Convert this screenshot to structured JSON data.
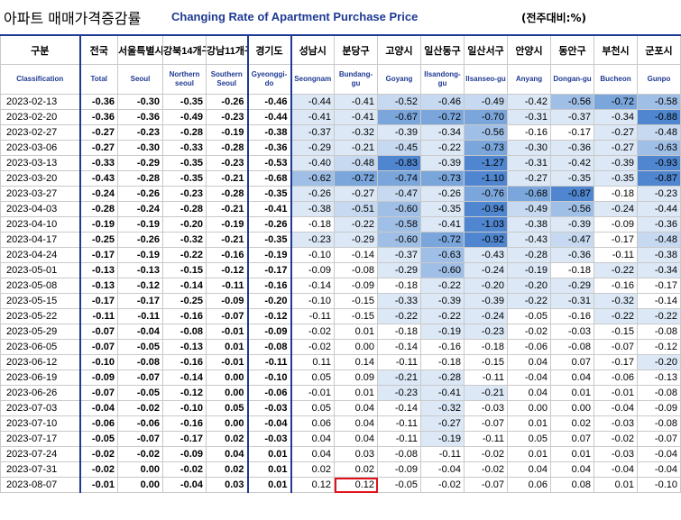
{
  "title_ko": "아파트 매매가격증감률",
  "title_en": "Changing Rate of Apartment Purchase Price",
  "unit": "(전주대비:%)",
  "headers": [
    {
      "ko": "구분",
      "en": "Classification"
    },
    {
      "ko": "전국",
      "en": "Total"
    },
    {
      "ko": "서울특별시",
      "en": "Seoul"
    },
    {
      "ko": "강북14개구",
      "en": "Northern seoul"
    },
    {
      "ko": "강남11개구",
      "en": "Southern Seoul"
    },
    {
      "ko": "경기도",
      "en": "Gyeonggi-do"
    },
    {
      "ko": "성남시",
      "en": "Seongnam"
    },
    {
      "ko": "분당구",
      "en": "Bundang-gu"
    },
    {
      "ko": "고양시",
      "en": "Goyang"
    },
    {
      "ko": "일산동구",
      "en": "Ilsandong-gu"
    },
    {
      "ko": "일산서구",
      "en": "Ilsanseo-gu"
    },
    {
      "ko": "안양시",
      "en": "Anyang"
    },
    {
      "ko": "동안구",
      "en": "Dongan-gu"
    },
    {
      "ko": "부천시",
      "en": "Bucheon"
    },
    {
      "ko": "군포시",
      "en": "Gunpo"
    }
  ],
  "rows": [
    [
      "2023-02-13",
      "-0.36",
      "-0.30",
      "-0.35",
      "-0.26",
      "-0.46",
      "-0.44",
      "-0.41",
      "-0.52",
      "-0.46",
      "-0.49",
      "-0.42",
      "-0.56",
      "-0.72",
      "-0.58"
    ],
    [
      "2023-02-20",
      "-0.36",
      "-0.36",
      "-0.49",
      "-0.23",
      "-0.44",
      "-0.41",
      "-0.41",
      "-0.67",
      "-0.72",
      "-0.70",
      "-0.31",
      "-0.37",
      "-0.34",
      "-0.88"
    ],
    [
      "2023-02-27",
      "-0.27",
      "-0.23",
      "-0.28",
      "-0.19",
      "-0.38",
      "-0.37",
      "-0.32",
      "-0.39",
      "-0.34",
      "-0.56",
      "-0.16",
      "-0.17",
      "-0.27",
      "-0.48"
    ],
    [
      "2023-03-06",
      "-0.27",
      "-0.30",
      "-0.33",
      "-0.28",
      "-0.36",
      "-0.29",
      "-0.21",
      "-0.45",
      "-0.22",
      "-0.73",
      "-0.30",
      "-0.36",
      "-0.27",
      "-0.63"
    ],
    [
      "2023-03-13",
      "-0.33",
      "-0.29",
      "-0.35",
      "-0.23",
      "-0.53",
      "-0.40",
      "-0.48",
      "-0.83",
      "-0.39",
      "-1.27",
      "-0.31",
      "-0.42",
      "-0.39",
      "-0.93"
    ],
    [
      "2023-03-20",
      "-0.43",
      "-0.28",
      "-0.35",
      "-0.21",
      "-0.68",
      "-0.62",
      "-0.72",
      "-0.74",
      "-0.73",
      "-1.10",
      "-0.27",
      "-0.35",
      "-0.35",
      "-0.87"
    ],
    [
      "2023-03-27",
      "-0.24",
      "-0.26",
      "-0.23",
      "-0.28",
      "-0.35",
      "-0.26",
      "-0.27",
      "-0.47",
      "-0.26",
      "-0.76",
      "-0.68",
      "-0.87",
      "-0.18",
      "-0.23"
    ],
    [
      "2023-04-03",
      "-0.28",
      "-0.24",
      "-0.28",
      "-0.21",
      "-0.41",
      "-0.38",
      "-0.51",
      "-0.60",
      "-0.35",
      "-0.94",
      "-0.49",
      "-0.56",
      "-0.24",
      "-0.44"
    ],
    [
      "2023-04-10",
      "-0.19",
      "-0.19",
      "-0.20",
      "-0.19",
      "-0.26",
      "-0.18",
      "-0.22",
      "-0.58",
      "-0.41",
      "-1.03",
      "-0.38",
      "-0.39",
      "-0.09",
      "-0.36"
    ],
    [
      "2023-04-17",
      "-0.25",
      "-0.26",
      "-0.32",
      "-0.21",
      "-0.35",
      "-0.23",
      "-0.29",
      "-0.60",
      "-0.72",
      "-0.92",
      "-0.43",
      "-0.47",
      "-0.17",
      "-0.48"
    ],
    [
      "2023-04-24",
      "-0.17",
      "-0.19",
      "-0.22",
      "-0.16",
      "-0.19",
      "-0.10",
      "-0.14",
      "-0.37",
      "-0.63",
      "-0.43",
      "-0.28",
      "-0.36",
      "-0.11",
      "-0.38"
    ],
    [
      "2023-05-01",
      "-0.13",
      "-0.13",
      "-0.15",
      "-0.12",
      "-0.17",
      "-0.09",
      "-0.08",
      "-0.29",
      "-0.60",
      "-0.24",
      "-0.19",
      "-0.18",
      "-0.22",
      "-0.34"
    ],
    [
      "2023-05-08",
      "-0.13",
      "-0.12",
      "-0.14",
      "-0.11",
      "-0.16",
      "-0.14",
      "-0.09",
      "-0.18",
      "-0.22",
      "-0.20",
      "-0.20",
      "-0.29",
      "-0.16",
      "-0.17"
    ],
    [
      "2023-05-15",
      "-0.17",
      "-0.17",
      "-0.25",
      "-0.09",
      "-0.20",
      "-0.10",
      "-0.15",
      "-0.33",
      "-0.39",
      "-0.39",
      "-0.22",
      "-0.31",
      "-0.32",
      "-0.14"
    ],
    [
      "2023-05-22",
      "-0.11",
      "-0.11",
      "-0.16",
      "-0.07",
      "-0.12",
      "-0.11",
      "-0.15",
      "-0.22",
      "-0.22",
      "-0.24",
      "-0.05",
      "-0.16",
      "-0.22",
      "-0.22"
    ],
    [
      "2023-05-29",
      "-0.07",
      "-0.04",
      "-0.08",
      "-0.01",
      "-0.09",
      "-0.02",
      "0.01",
      "-0.18",
      "-0.19",
      "-0.23",
      "-0.02",
      "-0.03",
      "-0.15",
      "-0.08"
    ],
    [
      "2023-06-05",
      "-0.07",
      "-0.05",
      "-0.13",
      "0.01",
      "-0.08",
      "-0.02",
      "0.00",
      "-0.14",
      "-0.16",
      "-0.18",
      "-0.06",
      "-0.08",
      "-0.07",
      "-0.12"
    ],
    [
      "2023-06-12",
      "-0.10",
      "-0.08",
      "-0.16",
      "-0.01",
      "-0.11",
      "0.11",
      "0.14",
      "-0.11",
      "-0.18",
      "-0.15",
      "0.04",
      "0.07",
      "-0.17",
      "-0.20"
    ],
    [
      "2023-06-19",
      "-0.09",
      "-0.07",
      "-0.14",
      "0.00",
      "-0.10",
      "0.05",
      "0.09",
      "-0.21",
      "-0.28",
      "-0.11",
      "-0.04",
      "0.04",
      "-0.06",
      "-0.13"
    ],
    [
      "2023-06-26",
      "-0.07",
      "-0.05",
      "-0.12",
      "0.00",
      "-0.06",
      "-0.01",
      "0.01",
      "-0.23",
      "-0.41",
      "-0.21",
      "0.04",
      "0.01",
      "-0.01",
      "-0.08"
    ],
    [
      "2023-07-03",
      "-0.04",
      "-0.02",
      "-0.10",
      "0.05",
      "-0.03",
      "0.05",
      "0.04",
      "-0.14",
      "-0.32",
      "-0.03",
      "0.00",
      "0.00",
      "-0.04",
      "-0.09"
    ],
    [
      "2023-07-10",
      "-0.06",
      "-0.06",
      "-0.16",
      "0.00",
      "-0.04",
      "0.06",
      "0.04",
      "-0.11",
      "-0.27",
      "-0.07",
      "0.01",
      "0.02",
      "-0.03",
      "-0.08"
    ],
    [
      "2023-07-17",
      "-0.05",
      "-0.07",
      "-0.17",
      "0.02",
      "-0.03",
      "0.04",
      "0.04",
      "-0.11",
      "-0.19",
      "-0.11",
      "0.05",
      "0.07",
      "-0.02",
      "-0.07"
    ],
    [
      "2023-07-24",
      "-0.02",
      "-0.02",
      "-0.09",
      "0.04",
      "0.01",
      "0.04",
      "0.03",
      "-0.08",
      "-0.11",
      "-0.02",
      "0.01",
      "0.01",
      "-0.03",
      "-0.04"
    ],
    [
      "2023-07-31",
      "-0.02",
      "0.00",
      "-0.02",
      "0.02",
      "0.01",
      "0.02",
      "0.02",
      "-0.09",
      "-0.04",
      "-0.02",
      "0.04",
      "0.04",
      "-0.04",
      "-0.04"
    ],
    [
      "2023-08-07",
      "-0.01",
      "0.00",
      "-0.04",
      "0.03",
      "0.01",
      "0.12",
      "0.12",
      "-0.05",
      "-0.02",
      "-0.07",
      "0.06",
      "0.08",
      "0.01",
      "-0.10"
    ]
  ],
  "highlight": {
    "row": 25,
    "col": 7,
    "color": "#e0131b"
  }
}
